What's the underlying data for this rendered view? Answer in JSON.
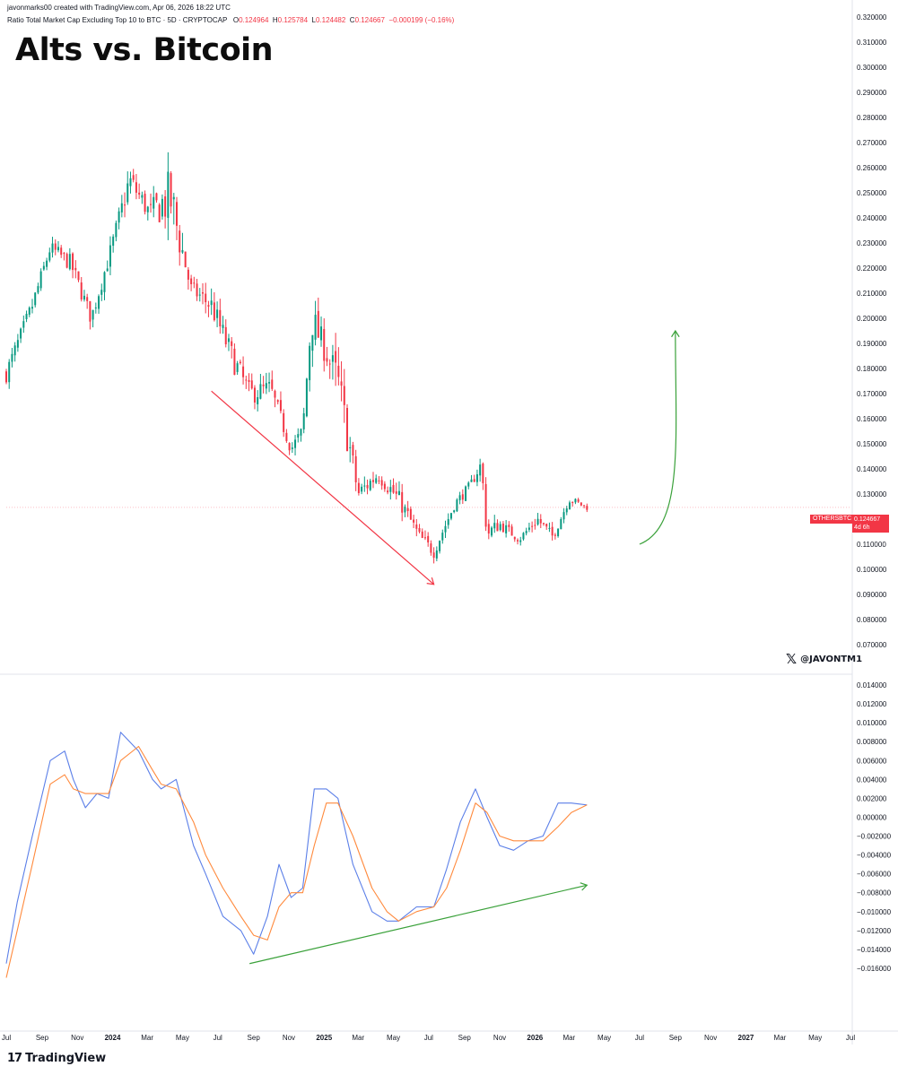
{
  "header": {
    "attribution": "javonmarks00 created with TradingView.com, Apr 06, 2026 18:22 UTC",
    "symbol_desc": "Ratio Total Market Cap Excluding Top 10 to BTC · 5D · CRYPTOCAP",
    "ohlc": {
      "o_label": "O",
      "o": "0.124964",
      "h_label": "H",
      "h": "0.125784",
      "l_label": "L",
      "l": "0.124482",
      "c_label": "C",
      "c": "0.124667",
      "change": "−0.000199 (−0.16%)"
    }
  },
  "title": "Alts vs. Bitcoin",
  "handle": "@JAVONTM1",
  "price_label": {
    "symbol": "OTHERSBTC",
    "value": "0.124667",
    "countdown": "4d 6h"
  },
  "brand": {
    "logo": "17",
    "name": "TradingView"
  },
  "colors": {
    "up": "#089981",
    "down": "#f23645",
    "blue": "#5b7fe8",
    "orange": "#ff8a3d",
    "green_arrow": "#3aa13a",
    "red_arrow": "#f23645"
  },
  "chart_data": [
    {
      "type": "candlestick",
      "title": "Alts vs. Bitcoin",
      "ylim": [
        0.065,
        0.322
      ],
      "yticks": [
        "0.320000",
        "0.310000",
        "0.300000",
        "0.290000",
        "0.280000",
        "0.270000",
        "0.260000",
        "0.250000",
        "0.240000",
        "0.230000",
        "0.220000",
        "0.210000",
        "0.200000",
        "0.190000",
        "0.180000",
        "0.170000",
        "0.160000",
        "0.150000",
        "0.140000",
        "0.130000",
        "0.120000",
        "0.110000",
        "0.100000",
        "0.090000",
        "0.080000",
        "0.070000"
      ],
      "x": [
        "2023-07-01",
        "2023-08-15",
        "2023-09-15",
        "2023-10-20",
        "2023-11-25",
        "2023-12-30",
        "2024-01-30",
        "2024-03-05",
        "2024-04-10",
        "2024-05-15",
        "2024-06-20",
        "2024-07-25",
        "2024-08-25",
        "2024-09-30",
        "2024-11-05",
        "2024-11-25",
        "2024-12-10",
        "2025-01-05",
        "2025-01-25",
        "2025-03-01",
        "2025-04-05",
        "2025-05-10",
        "2025-06-15",
        "2025-07-10",
        "2025-08-15",
        "2025-09-10",
        "2025-09-30",
        "2025-10-10",
        "2025-11-01",
        "2025-12-05",
        "2026-01-05",
        "2026-02-01",
        "2026-03-01",
        "2026-04-01"
      ],
      "close": [
        0.178,
        0.205,
        0.228,
        0.222,
        0.2,
        0.228,
        0.255,
        0.242,
        0.248,
        0.212,
        0.205,
        0.185,
        0.17,
        0.172,
        0.148,
        0.155,
        0.2,
        0.186,
        0.174,
        0.13,
        0.138,
        0.128,
        0.113,
        0.107,
        0.126,
        0.133,
        0.142,
        0.114,
        0.118,
        0.112,
        0.12,
        0.113,
        0.128,
        0.1247
      ],
      "high": [
        0.19,
        0.215,
        0.235,
        0.232,
        0.212,
        0.24,
        0.268,
        0.255,
        0.254,
        0.218,
        0.214,
        0.195,
        0.182,
        0.184,
        0.158,
        0.165,
        0.228,
        0.199,
        0.181,
        0.146,
        0.148,
        0.136,
        0.119,
        0.118,
        0.132,
        0.138,
        0.148,
        0.123,
        0.124,
        0.118,
        0.124,
        0.121,
        0.132,
        0.13
      ],
      "low": [
        0.17,
        0.196,
        0.218,
        0.212,
        0.193,
        0.22,
        0.238,
        0.232,
        0.185,
        0.2,
        0.186,
        0.165,
        0.156,
        0.16,
        0.142,
        0.146,
        0.184,
        0.17,
        0.122,
        0.124,
        0.128,
        0.114,
        0.103,
        0.103,
        0.12,
        0.126,
        0.134,
        0.099,
        0.11,
        0.108,
        0.109,
        0.109,
        0.122,
        0.123
      ]
    },
    {
      "type": "line",
      "series_names": [],
      "ylim": [
        -0.0175,
        0.015
      ],
      "yticks": [
        "0.014000",
        "0.012000",
        "0.010000",
        "0.008000",
        "0.006000",
        "0.004000",
        "0.002000",
        "0.000000",
        "−0.002000",
        "−0.004000",
        "−0.006000",
        "−0.008000",
        "−0.010000",
        "−0.012000",
        "−0.014000",
        "−0.016000"
      ],
      "x": [
        "2023-07-01",
        "2023-07-20",
        "2023-08-15",
        "2023-09-15",
        "2023-10-10",
        "2023-10-25",
        "2023-11-15",
        "2023-12-05",
        "2023-12-25",
        "2024-01-15",
        "2024-02-15",
        "2024-03-10",
        "2024-03-25",
        "2024-04-20",
        "2024-05-20",
        "2024-06-10",
        "2024-07-10",
        "2024-08-10",
        "2024-09-01",
        "2024-09-25",
        "2024-10-15",
        "2024-11-05",
        "2024-11-25",
        "2024-12-15",
        "2025-01-05",
        "2025-01-25",
        "2025-02-20",
        "2025-03-25",
        "2025-04-20",
        "2025-05-10",
        "2025-06-10",
        "2025-07-10",
        "2025-08-01",
        "2025-08-25",
        "2025-09-20",
        "2025-10-10",
        "2025-11-01",
        "2025-11-25",
        "2025-12-20",
        "2026-01-15",
        "2026-02-10",
        "2026-03-05",
        "2026-04-01"
      ],
      "series": [
        {
          "name": "",
          "values": [
            -0.0155,
            -0.009,
            -0.002,
            0.006,
            0.007,
            0.004,
            0.001,
            0.0025,
            0.002,
            0.009,
            0.007,
            0.004,
            0.003,
            0.004,
            -0.003,
            -0.006,
            -0.0105,
            -0.012,
            -0.0145,
            -0.0105,
            -0.005,
            -0.0085,
            -0.0075,
            0.003,
            0.003,
            0.002,
            -0.005,
            -0.01,
            -0.011,
            -0.011,
            -0.0095,
            -0.0095,
            -0.0055,
            -0.0005,
            0.003,
            0.0,
            -0.003,
            -0.0035,
            -0.0025,
            -0.002,
            0.0015,
            0.0015,
            0.0013
          ]
        },
        {
          "name": "",
          "values": [
            -0.017,
            -0.012,
            -0.005,
            0.0035,
            0.0045,
            0.003,
            0.0025,
            0.0025,
            0.0025,
            0.006,
            0.0075,
            0.005,
            0.0035,
            0.003,
            -0.0005,
            -0.004,
            -0.0075,
            -0.0105,
            -0.0125,
            -0.013,
            -0.0095,
            -0.008,
            -0.008,
            -0.003,
            0.0015,
            0.0015,
            -0.002,
            -0.0075,
            -0.01,
            -0.011,
            -0.01,
            -0.0095,
            -0.0075,
            -0.0035,
            0.0015,
            0.0005,
            -0.002,
            -0.0025,
            -0.0025,
            -0.0025,
            -0.001,
            0.0005,
            0.0013
          ]
        }
      ]
    }
  ],
  "x_axis": [
    {
      "label": "Jul",
      "date": "2023-07-01",
      "bold": false
    },
    {
      "label": "Sep",
      "date": "2023-09-01",
      "bold": false
    },
    {
      "label": "Nov",
      "date": "2023-11-01",
      "bold": false
    },
    {
      "label": "2024",
      "date": "2024-01-01",
      "bold": true
    },
    {
      "label": "Mar",
      "date": "2024-03-01",
      "bold": false
    },
    {
      "label": "May",
      "date": "2024-05-01",
      "bold": false
    },
    {
      "label": "Jul",
      "date": "2024-07-01",
      "bold": false
    },
    {
      "label": "Sep",
      "date": "2024-09-01",
      "bold": false
    },
    {
      "label": "Nov",
      "date": "2024-11-01",
      "bold": false
    },
    {
      "label": "2025",
      "date": "2025-01-01",
      "bold": true
    },
    {
      "label": "Mar",
      "date": "2025-03-01",
      "bold": false
    },
    {
      "label": "May",
      "date": "2025-05-01",
      "bold": false
    },
    {
      "label": "Jul",
      "date": "2025-07-01",
      "bold": false
    },
    {
      "label": "Sep",
      "date": "2025-09-01",
      "bold": false
    },
    {
      "label": "Nov",
      "date": "2025-11-01",
      "bold": false
    },
    {
      "label": "2026",
      "date": "2026-01-01",
      "bold": true
    },
    {
      "label": "Mar",
      "date": "2026-03-01",
      "bold": false
    },
    {
      "label": "May",
      "date": "2026-05-01",
      "bold": false
    },
    {
      "label": "Jul",
      "date": "2026-07-01",
      "bold": false
    },
    {
      "label": "Sep",
      "date": "2026-09-01",
      "bold": false
    },
    {
      "label": "Nov",
      "date": "2026-11-01",
      "bold": false
    },
    {
      "label": "2027",
      "date": "2027-01-01",
      "bold": true
    },
    {
      "label": "Mar",
      "date": "2027-03-01",
      "bold": false
    },
    {
      "label": "May",
      "date": "2027-05-01",
      "bold": false
    },
    {
      "label": "Jul",
      "date": "2027-07-01",
      "bold": false
    }
  ],
  "annotations": {
    "price_down_arrow": {
      "from": [
        "2024-06-20",
        0.171
      ],
      "to": [
        "2025-07-10",
        0.094
      ]
    },
    "projection_up_arrow": {
      "from": [
        "2026-07-01",
        0.11
      ],
      "to": [
        "2026-09-01",
        0.195
      ]
    },
    "indicator_up_arrow": {
      "from": [
        "2024-08-25",
        -0.0155
      ],
      "to": [
        "2026-04-01",
        -0.0072
      ]
    }
  }
}
